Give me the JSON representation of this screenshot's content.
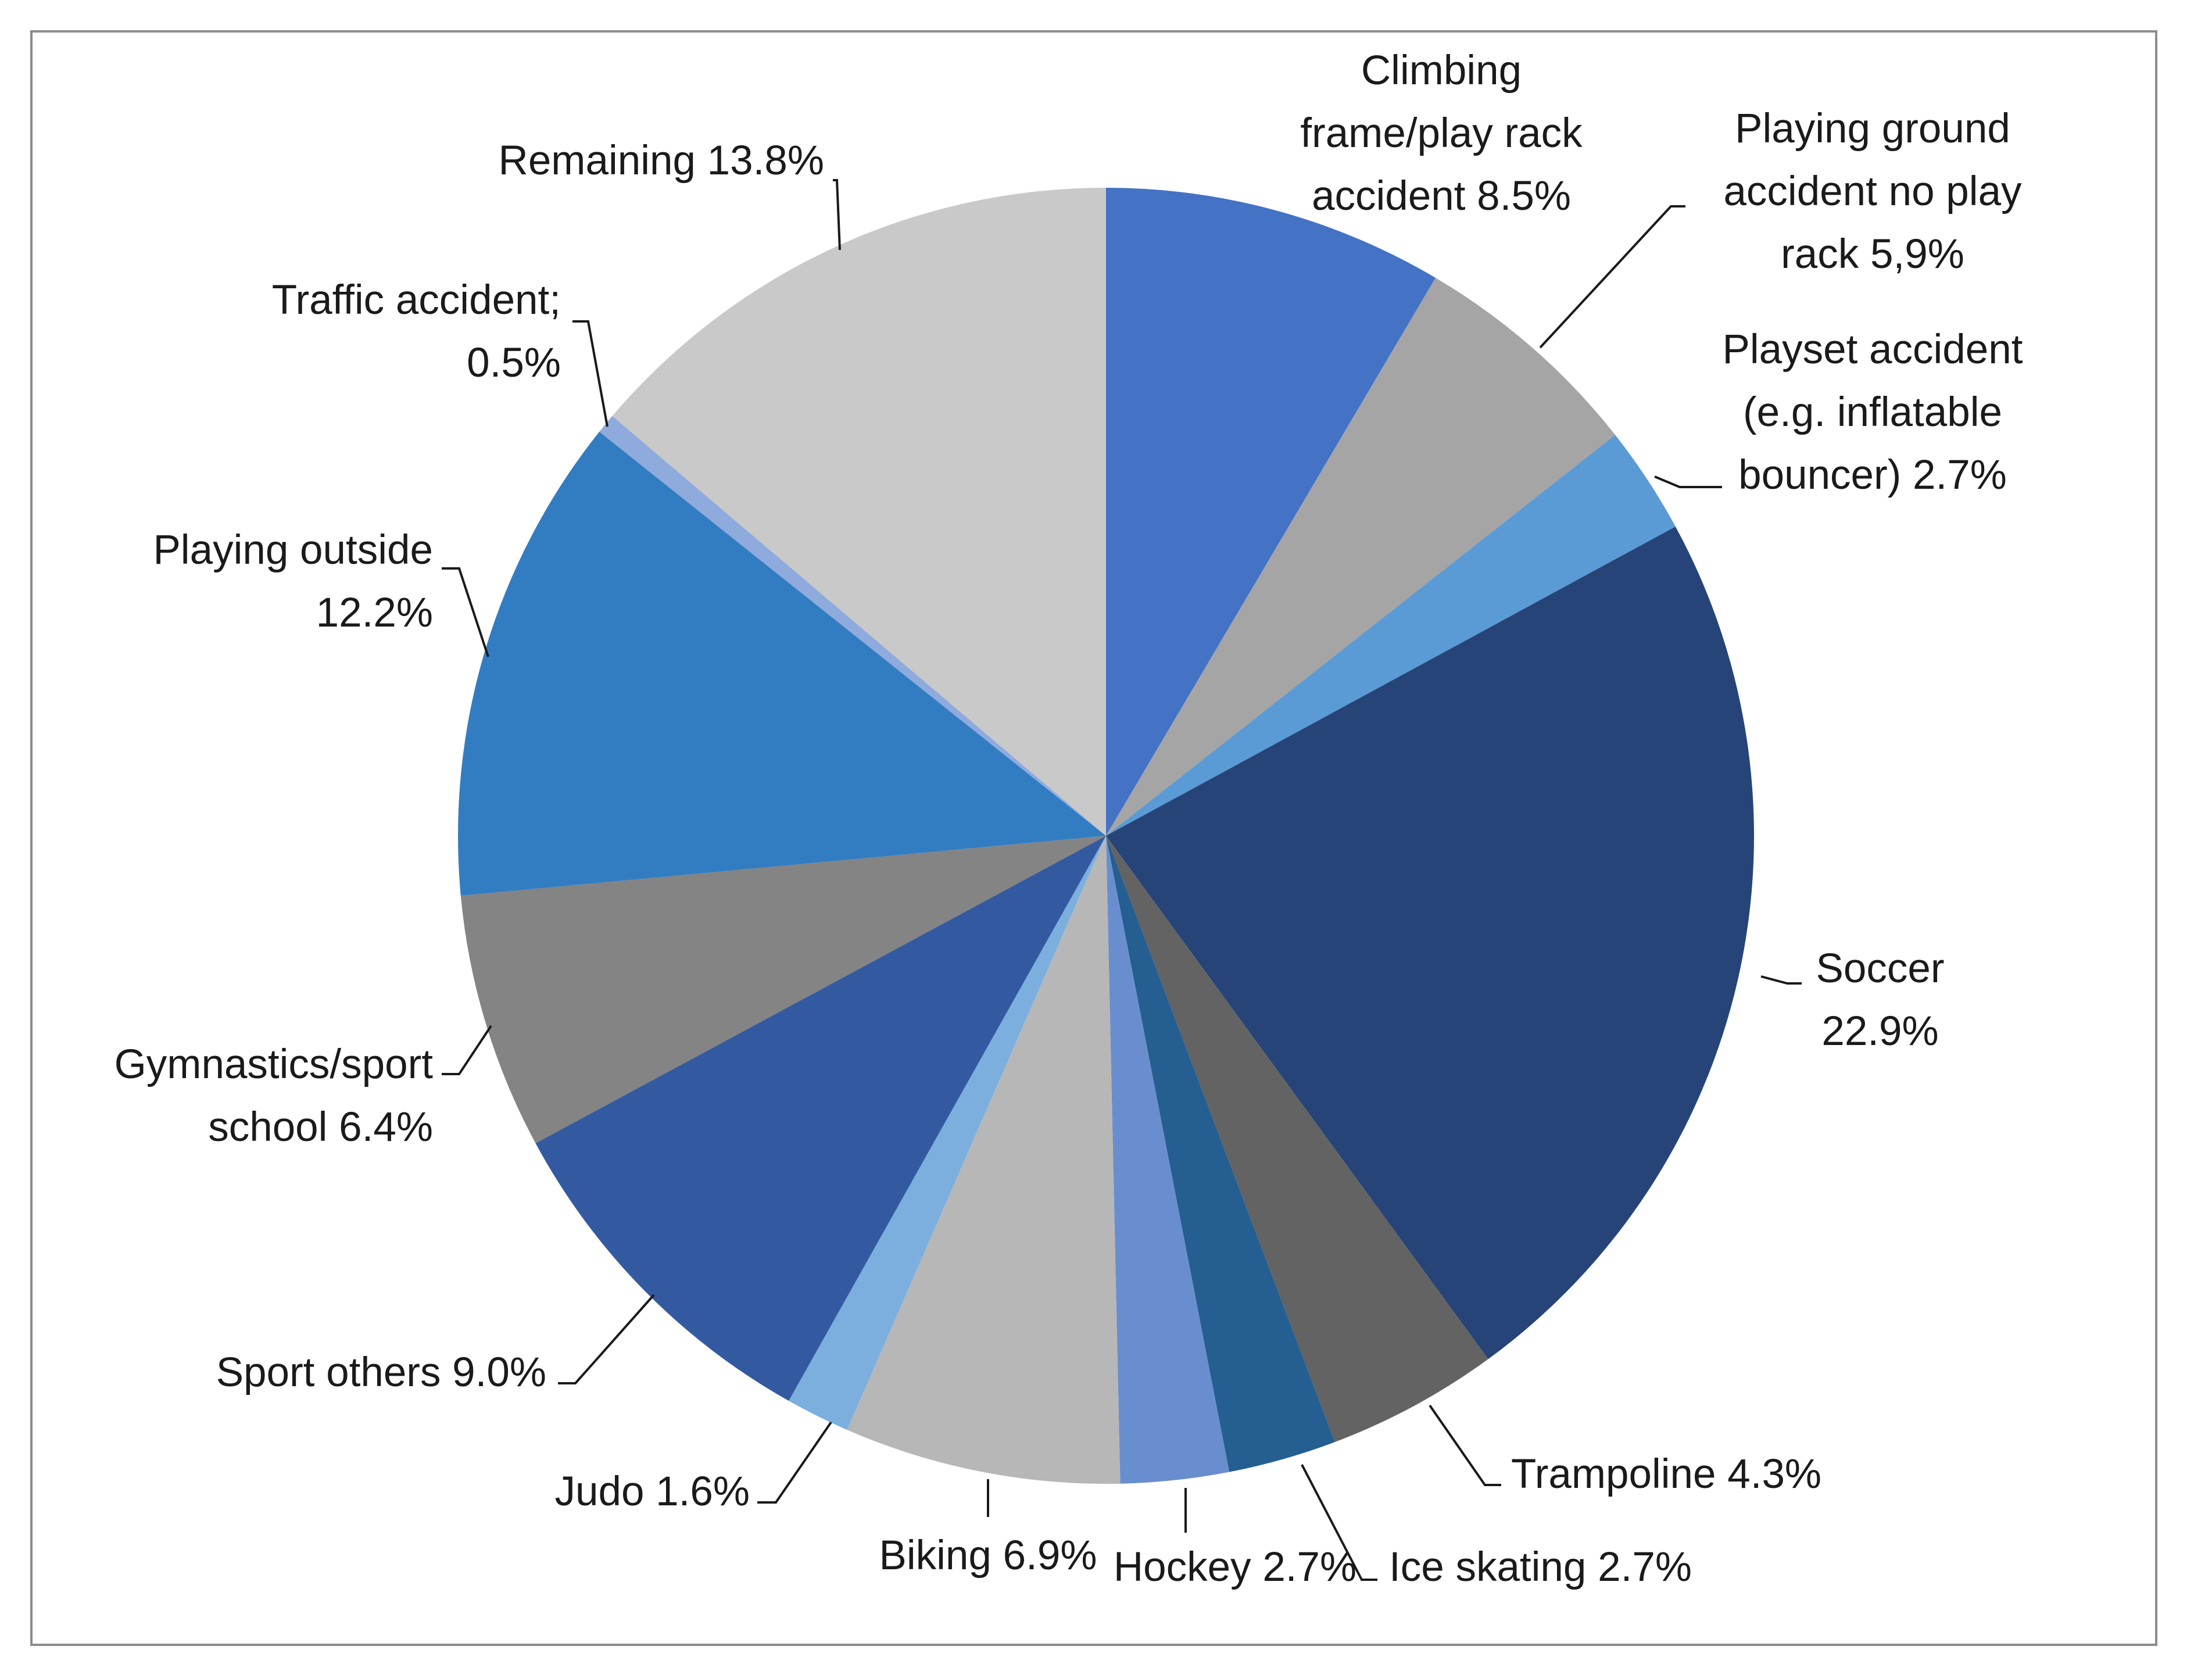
{
  "chart_data": {
    "type": "pie",
    "start": "12 o'clock",
    "direction": "clockwise",
    "slices": [
      {
        "lines": [
          "Climbing",
          "frame/play rack",
          "accident 8.5%"
        ],
        "value": 8.5,
        "color": "#4472C4"
      },
      {
        "lines": [
          "Playing ground",
          "accident no play",
          "rack 5,9%"
        ],
        "value": 5.9,
        "color": "#A5A5A5"
      },
      {
        "lines": [
          "Playset accident",
          "(e.g. inflatable",
          "bouncer) 2.7%"
        ],
        "value": 2.7,
        "color": "#5B9BD5"
      },
      {
        "lines": [
          "Soccer",
          "22.9%"
        ],
        "value": 22.9,
        "color": "#264478"
      },
      {
        "lines": [
          "Trampoline 4.3%"
        ],
        "value": 4.3,
        "color": "#636363"
      },
      {
        "lines": [
          "Ice skating 2.7%"
        ],
        "value": 2.7,
        "color": "#255E91"
      },
      {
        "lines": [
          "Hockey 2.7%"
        ],
        "value": 2.7,
        "color": "#698ED0"
      },
      {
        "lines": [
          "Biking 6.9%"
        ],
        "value": 6.9,
        "color": "#B7B7B7"
      },
      {
        "lines": [
          "Judo 1.6%"
        ],
        "value": 1.6,
        "color": "#7CAFDD"
      },
      {
        "lines": [
          "Sport others 9.0%"
        ],
        "value": 9.0,
        "color": "#335AA1"
      },
      {
        "lines": [
          "Gymnastics/sport",
          "school 6.4%"
        ],
        "value": 6.4,
        "color": "#848484"
      },
      {
        "lines": [
          "Playing outside",
          "12.2%"
        ],
        "value": 12.2,
        "color": "#327DC2"
      },
      {
        "lines": [
          "Traffic accident;",
          "0.5%"
        ],
        "value": 0.5,
        "color": "#8FAADC"
      },
      {
        "lines": [
          "Remaining 13.8%"
        ],
        "value": 13.8,
        "color": "#C9C9C9"
      }
    ]
  }
}
